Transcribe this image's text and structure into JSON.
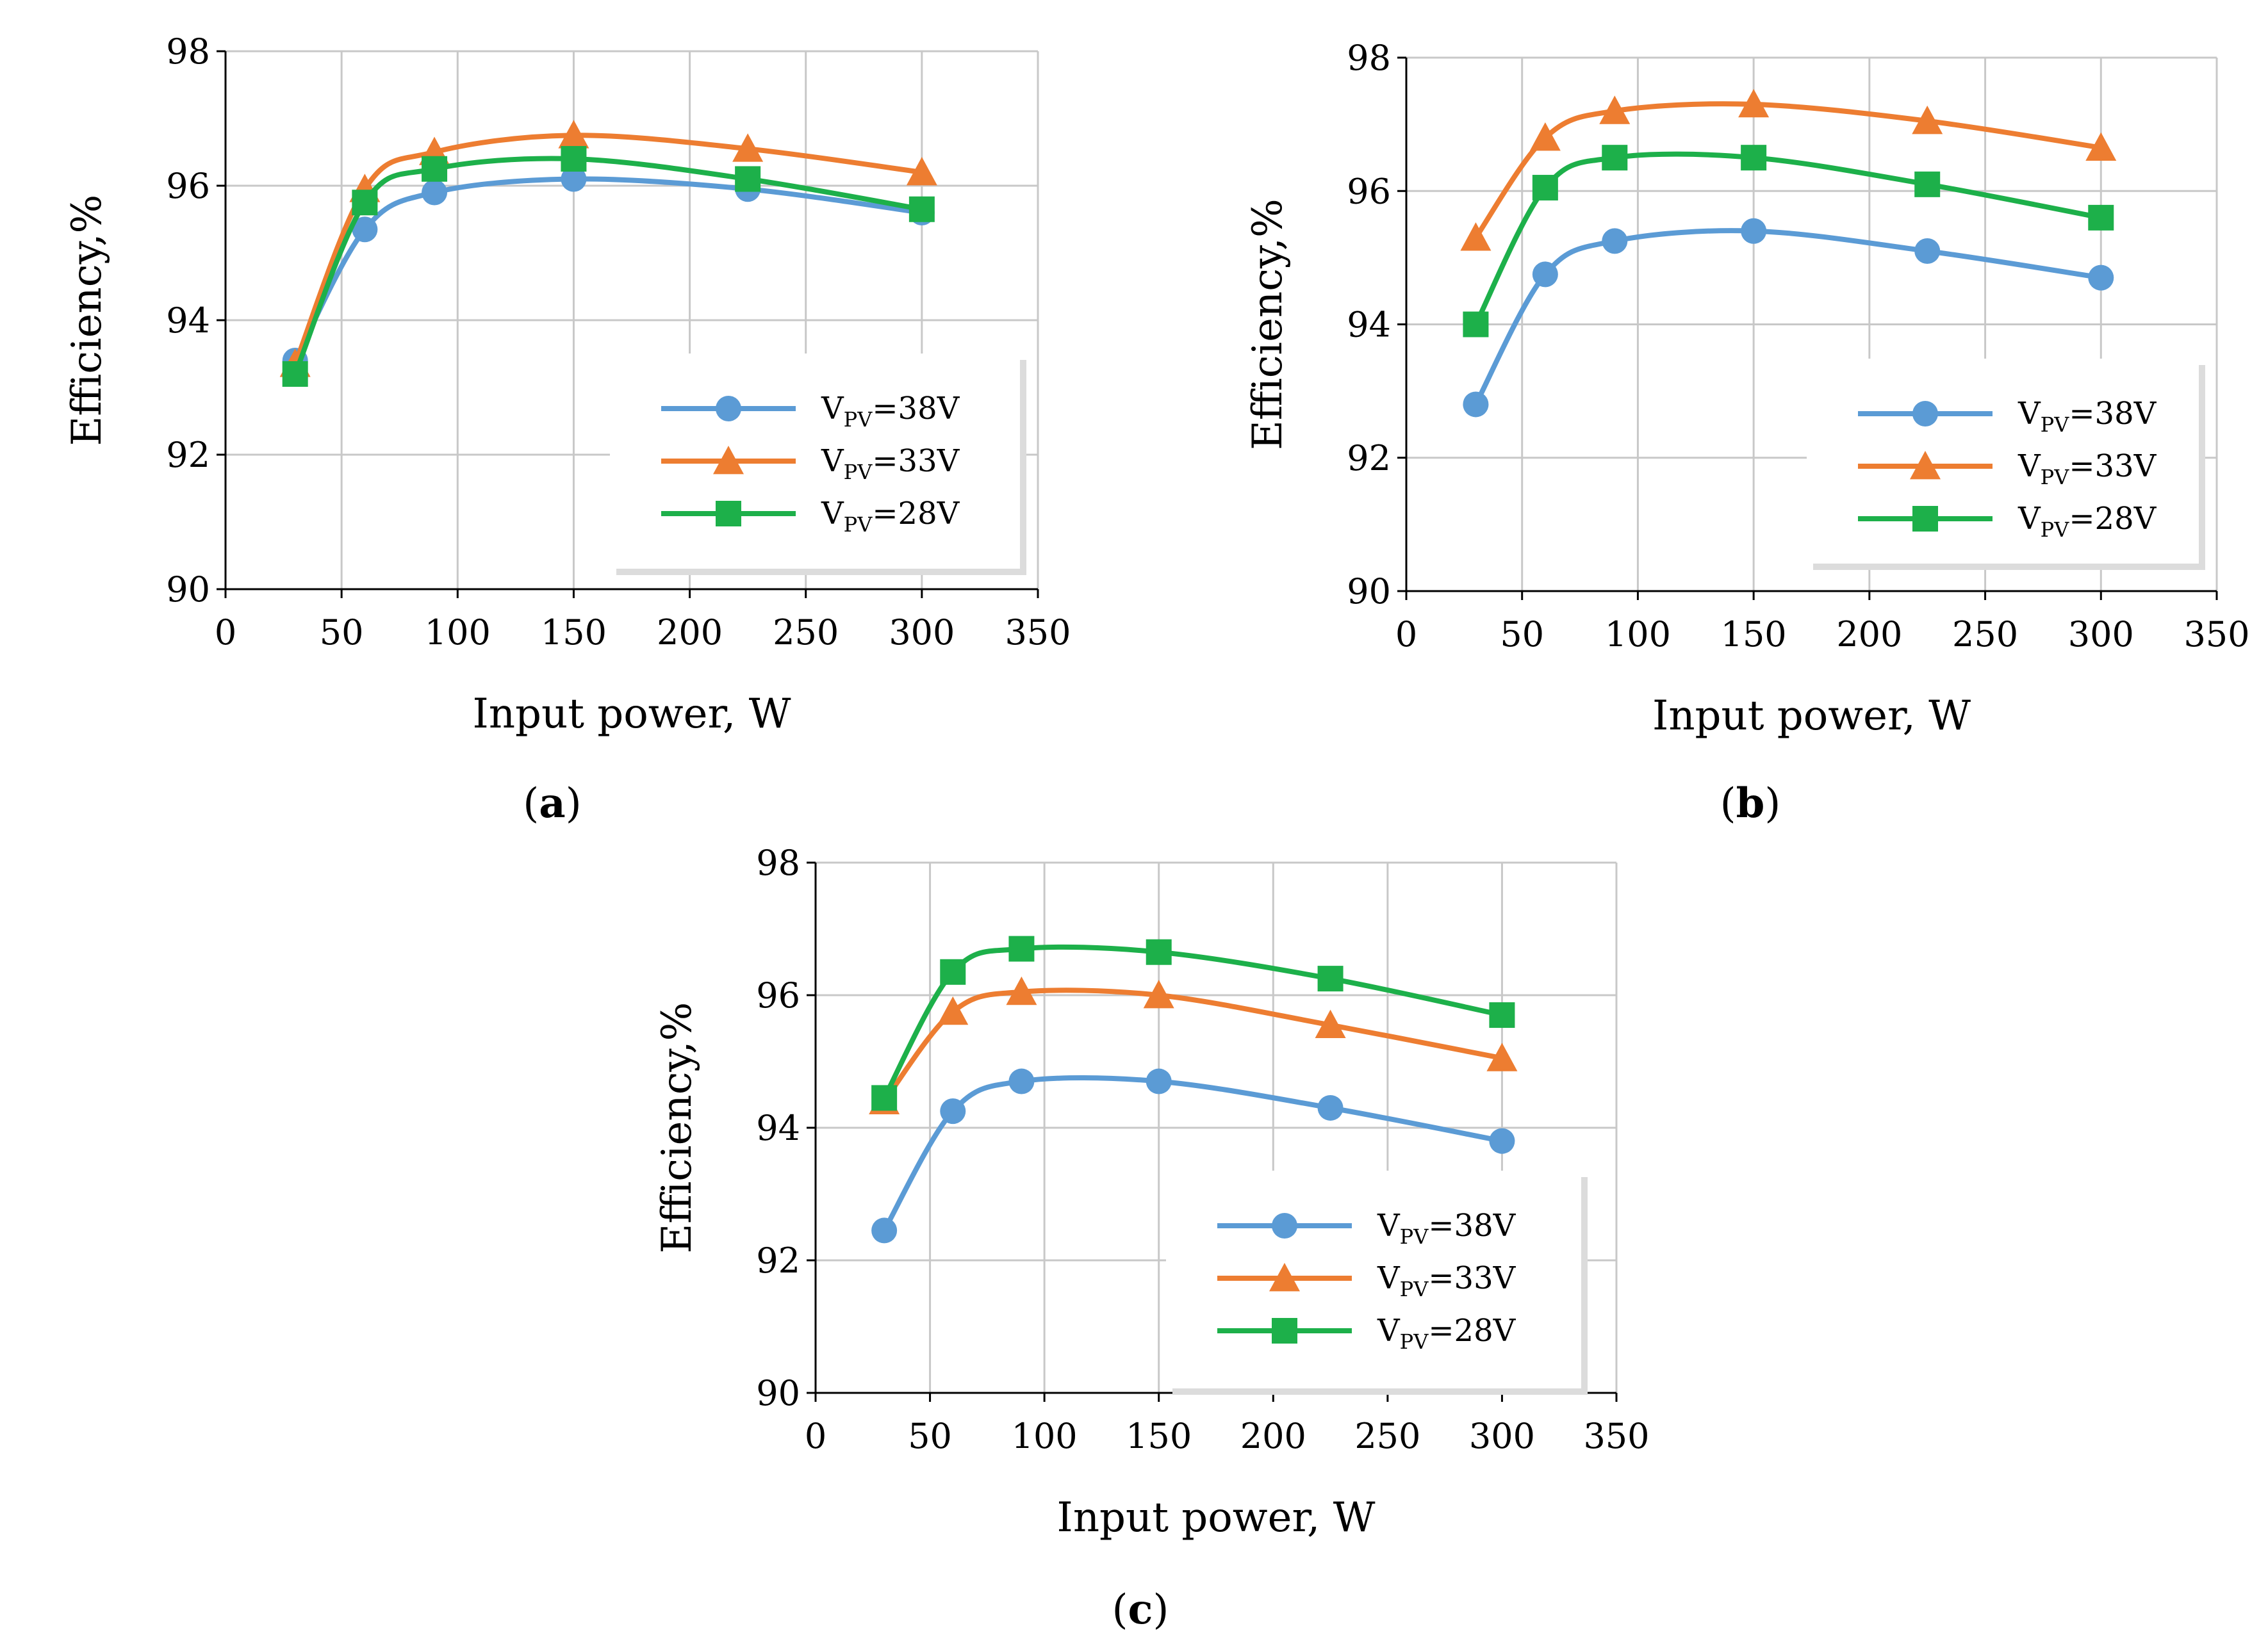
{
  "chart_data": [
    {
      "type": "line",
      "panel_label": "a",
      "xlabel": "Input power, W",
      "ylabel": "Efficiency,%",
      "xlim": [
        0,
        350
      ],
      "ylim": [
        90,
        98
      ],
      "xticks": [
        0,
        50,
        100,
        150,
        200,
        250,
        300,
        350
      ],
      "yticks": [
        90,
        92,
        94,
        96,
        98
      ],
      "grid": true,
      "legend_position": "bottom-right",
      "series": [
        {
          "name_main": "V",
          "name_sub": "PV",
          "name_tail": "=38V",
          "color": "#5B9BD5",
          "marker": "circle",
          "x": [
            30,
            60,
            90,
            150,
            225,
            300
          ],
          "values": [
            93.4,
            95.35,
            95.9,
            96.1,
            95.95,
            95.6
          ]
        },
        {
          "name_main": "V",
          "name_sub": "PV",
          "name_tail": "=33V",
          "color": "#ED7D31",
          "marker": "triangle",
          "x": [
            30,
            60,
            90,
            150,
            225,
            300
          ],
          "values": [
            93.35,
            95.95,
            96.5,
            96.75,
            96.55,
            96.2
          ]
        },
        {
          "name_main": "V",
          "name_sub": "PV",
          "name_tail": "=28V",
          "color": "#1DB04A",
          "marker": "square",
          "x": [
            30,
            60,
            90,
            150,
            225,
            300
          ],
          "values": [
            93.2,
            95.75,
            96.25,
            96.4,
            96.1,
            95.65
          ]
        }
      ]
    },
    {
      "type": "line",
      "panel_label": "b",
      "xlabel": "Input power, W",
      "ylabel": "Efficiency,%",
      "xlim": [
        0,
        350
      ],
      "ylim": [
        90,
        98
      ],
      "xticks": [
        0,
        50,
        100,
        150,
        200,
        250,
        300,
        350
      ],
      "yticks": [
        90,
        92,
        94,
        96,
        98
      ],
      "grid": true,
      "legend_position": "bottom-right",
      "series": [
        {
          "name_main": "V",
          "name_sub": "PV",
          "name_tail": "=38V",
          "color": "#5B9BD5",
          "marker": "circle",
          "x": [
            30,
            60,
            90,
            150,
            225,
            300
          ],
          "values": [
            92.8,
            94.75,
            95.25,
            95.4,
            95.1,
            94.7
          ]
        },
        {
          "name_main": "V",
          "name_sub": "PV",
          "name_tail": "=33V",
          "color": "#ED7D31",
          "marker": "triangle",
          "x": [
            30,
            60,
            90,
            150,
            225,
            300
          ],
          "values": [
            95.3,
            96.8,
            97.2,
            97.3,
            97.05,
            96.65
          ]
        },
        {
          "name_main": "V",
          "name_sub": "PV",
          "name_tail": "=28V",
          "color": "#1DB04A",
          "marker": "square",
          "x": [
            30,
            60,
            90,
            150,
            225,
            300
          ],
          "values": [
            94.0,
            96.05,
            96.5,
            96.5,
            96.1,
            95.6
          ]
        }
      ]
    },
    {
      "type": "line",
      "panel_label": "c",
      "xlabel": "Input power, W",
      "ylabel": "Efficiency,%",
      "xlim": [
        0,
        350
      ],
      "ylim": [
        90,
        98
      ],
      "xticks": [
        0,
        50,
        100,
        150,
        200,
        250,
        300,
        350
      ],
      "yticks": [
        90,
        92,
        94,
        96,
        98
      ],
      "grid": true,
      "legend_position": "bottom-right",
      "series": [
        {
          "name_main": "V",
          "name_sub": "PV",
          "name_tail": "=38V",
          "color": "#5B9BD5",
          "marker": "circle",
          "x": [
            30,
            60,
            90,
            150,
            225,
            300
          ],
          "values": [
            92.45,
            94.25,
            94.7,
            94.7,
            94.3,
            93.8
          ]
        },
        {
          "name_main": "V",
          "name_sub": "PV",
          "name_tail": "=33V",
          "color": "#ED7D31",
          "marker": "triangle",
          "x": [
            30,
            60,
            90,
            150,
            225,
            300
          ],
          "values": [
            94.4,
            95.75,
            96.05,
            96.0,
            95.55,
            95.05
          ]
        },
        {
          "name_main": "V",
          "name_sub": "PV",
          "name_tail": "=28V",
          "color": "#1DB04A",
          "marker": "square",
          "x": [
            30,
            60,
            90,
            150,
            225,
            300
          ],
          "values": [
            94.45,
            96.35,
            96.7,
            96.65,
            96.25,
            95.7
          ]
        }
      ]
    }
  ]
}
